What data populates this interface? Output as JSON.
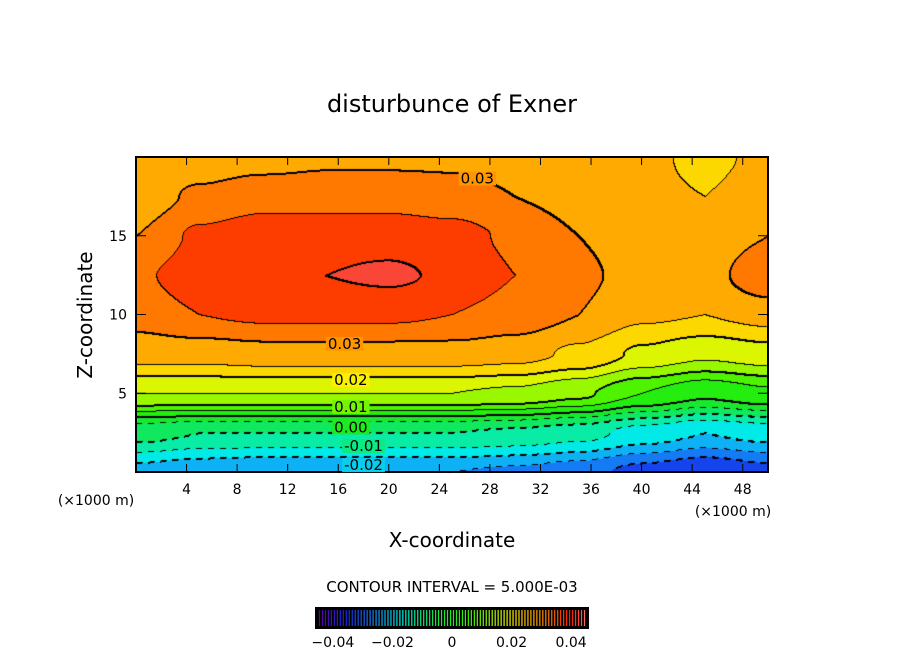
{
  "chart_data": {
    "type": "heatmap",
    "subtype": "filled-contour",
    "title": "disturbunce of Exner",
    "xlabel": "X-coordinate",
    "ylabel": "Z-coordinate",
    "x_unit_label": "(×1000 m)",
    "z_unit_label": "(×1000 m)",
    "xlim": [
      0,
      50
    ],
    "ylim": [
      0,
      20
    ],
    "x_ticks": [
      4,
      8,
      12,
      16,
      20,
      24,
      28,
      32,
      36,
      40,
      44,
      48
    ],
    "y_ticks": [
      5,
      10,
      15
    ],
    "grid_x": [
      0,
      5,
      10,
      15,
      20,
      25,
      30,
      35,
      40,
      45,
      50
    ],
    "grid_z": [
      0,
      2.5,
      5,
      7.5,
      10,
      12.5,
      15,
      17.5,
      20
    ],
    "values": [
      [
        -0.022,
        -0.024,
        -0.025,
        -0.025,
        -0.025,
        -0.025,
        -0.026,
        -0.028,
        -0.032,
        -0.035,
        -0.032
      ],
      [
        -0.008,
        -0.01,
        -0.01,
        -0.01,
        -0.01,
        -0.01,
        -0.011,
        -0.013,
        -0.017,
        -0.02,
        -0.018
      ],
      [
        0.015,
        0.015,
        0.015,
        0.015,
        0.015,
        0.015,
        0.014,
        0.011,
        0.005,
        0.001,
        0.004
      ],
      [
        0.027,
        0.027,
        0.028,
        0.028,
        0.028,
        0.028,
        0.027,
        0.024,
        0.019,
        0.016,
        0.018
      ],
      [
        0.032,
        0.035,
        0.036,
        0.036,
        0.036,
        0.035,
        0.033,
        0.03,
        0.026,
        0.025,
        0.027
      ],
      [
        0.034,
        0.038,
        0.04,
        0.04,
        0.041,
        0.039,
        0.035,
        0.031,
        0.028,
        0.028,
        0.034
      ],
      [
        0.03,
        0.036,
        0.038,
        0.038,
        0.038,
        0.037,
        0.034,
        0.03,
        0.027,
        0.027,
        0.03
      ],
      [
        0.027,
        0.031,
        0.033,
        0.033,
        0.033,
        0.032,
        0.03,
        0.028,
        0.026,
        0.025,
        0.027
      ],
      [
        0.025,
        0.027,
        0.028,
        0.029,
        0.029,
        0.029,
        0.028,
        0.027,
        0.026,
        0.024,
        0.026
      ]
    ],
    "contour_interval": 0.005,
    "contour_interval_text": "CONTOUR INTERVAL = 5.000E-03",
    "contour_labels": [
      {
        "text": "0.03",
        "x": 27,
        "z": 18.7
      },
      {
        "text": "0.03",
        "x": 16.5,
        "z": 8.2
      },
      {
        "text": "0.02",
        "x": 17,
        "z": 5.9
      },
      {
        "text": "0.01",
        "x": 17,
        "z": 4.2
      },
      {
        "text": "0.00",
        "x": 17,
        "z": 2.9
      },
      {
        "text": "-0.01",
        "x": 18,
        "z": 1.7
      },
      {
        "text": "-0.02",
        "x": 18,
        "z": 0.5
      }
    ],
    "colorbar": {
      "range": [
        -0.045,
        0.045
      ],
      "tick_values": [
        -0.04,
        -0.02,
        0,
        0.02,
        0.04
      ],
      "tick_labels": [
        "−0.04",
        "−0.02",
        "0",
        "0.02",
        "0.04"
      ]
    }
  }
}
